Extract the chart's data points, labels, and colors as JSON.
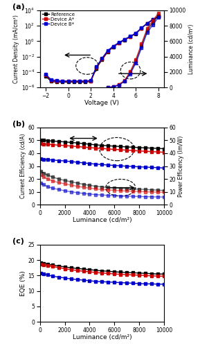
{
  "panel_a": {
    "voltage": [
      -2.0,
      -1.5,
      -1.0,
      -0.5,
      0.0,
      0.5,
      1.0,
      1.5,
      2.0,
      2.5,
      3.0,
      3.5,
      4.0,
      4.5,
      5.0,
      5.5,
      6.0,
      6.5,
      7.0,
      7.5,
      8.0
    ],
    "jd_ref": [
      3e-05,
      6e-06,
      5e-06,
      5e-06,
      5e-06,
      5e-06,
      5e-06,
      5e-06,
      6e-06,
      0.0003,
      0.004,
      0.04,
      0.18,
      0.55,
      1.4,
      3.8,
      9.5,
      48.0,
      195.0,
      590.0,
      1480.0
    ],
    "jd_A": [
      4e-05,
      8e-06,
      6e-06,
      6e-06,
      6e-06,
      6e-06,
      6e-06,
      6e-06,
      7e-06,
      0.0004,
      0.005,
      0.05,
      0.2,
      0.6,
      1.55,
      4.0,
      10.5,
      50.0,
      205.0,
      610.0,
      1580.0
    ],
    "jd_B": [
      5e-05,
      1e-05,
      8e-06,
      7e-06,
      7e-06,
      7e-06,
      7e-06,
      7e-06,
      8e-06,
      0.0005,
      0.006,
      0.06,
      0.23,
      0.68,
      1.75,
      4.3,
      11.5,
      53.0,
      215.0,
      630.0,
      1650.0
    ],
    "lum_ref": [
      0,
      0,
      0,
      0,
      0,
      0,
      0,
      0,
      0,
      0,
      0,
      10,
      80,
      350,
      850,
      1900,
      3400,
      5400,
      7400,
      8400,
      9400
    ],
    "lum_A": [
      0,
      0,
      0,
      0,
      0,
      0,
      0,
      0,
      0,
      0,
      0,
      15,
      100,
      380,
      920,
      2050,
      3650,
      5650,
      7650,
      8650,
      9650
    ],
    "lum_B": [
      0,
      0,
      0,
      0,
      0,
      0,
      0,
      0,
      0,
      0,
      0,
      8,
      65,
      310,
      780,
      1750,
      3150,
      5100,
      7100,
      8100,
      9100
    ],
    "xlim": [
      -2.5,
      8.5
    ],
    "ylim_j": [
      1e-06,
      10000.0
    ],
    "ylim_l": [
      0,
      10000
    ],
    "xlabel": "Voltage (V)",
    "ylabel_left": "Current Density (mA/cm²)",
    "ylabel_right": "Luminance (cd/m²)",
    "xticks": [
      -2,
      0,
      2,
      4,
      6,
      8
    ],
    "yticks_l": [
      0,
      2000,
      4000,
      6000,
      8000,
      10000
    ]
  },
  "panel_b": {
    "luminance": [
      50,
      300,
      600,
      1000,
      1500,
      2000,
      2500,
      3000,
      3500,
      4000,
      4500,
      5000,
      5500,
      6000,
      6500,
      7000,
      7500,
      8000,
      8500,
      9000,
      9500,
      10000
    ],
    "ce_ref": [
      50.2,
      50.0,
      49.8,
      49.5,
      49.2,
      48.8,
      48.4,
      48.0,
      47.5,
      47.0,
      46.5,
      46.2,
      45.8,
      45.5,
      45.2,
      44.9,
      44.7,
      44.4,
      44.2,
      44.0,
      43.8,
      43.5
    ],
    "ce_A": [
      47.5,
      47.2,
      47.0,
      46.7,
      46.3,
      46.0,
      45.6,
      45.2,
      44.8,
      44.4,
      44.0,
      43.7,
      43.3,
      43.0,
      42.7,
      42.4,
      42.1,
      41.8,
      41.5,
      41.3,
      41.0,
      40.8
    ],
    "ce_B": [
      35.5,
      35.2,
      35.0,
      34.7,
      34.3,
      34.0,
      33.5,
      33.0,
      32.5,
      32.0,
      31.5,
      31.2,
      30.8,
      30.5,
      30.2,
      29.9,
      29.7,
      29.4,
      29.2,
      29.0,
      28.8,
      28.5
    ],
    "pe_ref": [
      26.0,
      24.5,
      23.0,
      21.5,
      20.0,
      18.8,
      17.8,
      16.8,
      15.8,
      15.0,
      14.3,
      13.8,
      13.3,
      13.0,
      12.7,
      12.4,
      12.2,
      12.0,
      11.8,
      11.5,
      11.3,
      11.0
    ],
    "pe_A": [
      23.0,
      21.5,
      20.0,
      18.5,
      17.2,
      16.2,
      15.2,
      14.3,
      13.5,
      12.8,
      12.2,
      11.8,
      11.4,
      11.1,
      10.8,
      10.6,
      10.4,
      10.2,
      10.0,
      9.8,
      9.7,
      9.6
    ],
    "pe_B": [
      17.0,
      15.5,
      14.0,
      12.8,
      11.8,
      10.8,
      10.0,
      9.3,
      8.7,
      8.2,
      7.8,
      7.5,
      7.2,
      7.0,
      6.8,
      6.6,
      6.5,
      6.3,
      6.2,
      6.1,
      6.0,
      5.9
    ],
    "xlim": [
      0,
      10000
    ],
    "ylim": [
      0,
      60
    ],
    "xlabel": "Luminance (cd/m²)",
    "ylabel_left": "Current Efficiency (cd/A)",
    "ylabel_right": "Power Efficency (lm/W)",
    "yticks": [
      0,
      10,
      20,
      30,
      40,
      50,
      60
    ],
    "xticks": [
      0,
      2000,
      4000,
      6000,
      8000,
      10000
    ]
  },
  "panel_c": {
    "luminance": [
      50,
      300,
      600,
      1000,
      1500,
      2000,
      2500,
      3000,
      3500,
      4000,
      4500,
      5000,
      5500,
      6000,
      6500,
      7000,
      7500,
      8000,
      8500,
      9000,
      9500,
      10000
    ],
    "eqe_ref": [
      19.2,
      19.0,
      18.7,
      18.4,
      18.1,
      17.8,
      17.5,
      17.3,
      17.1,
      16.9,
      16.7,
      16.5,
      16.4,
      16.2,
      16.1,
      16.0,
      15.9,
      15.8,
      15.7,
      15.6,
      15.5,
      15.5
    ],
    "eqe_A": [
      18.7,
      18.5,
      18.2,
      17.9,
      17.6,
      17.2,
      16.9,
      16.6,
      16.4,
      16.2,
      16.0,
      15.8,
      15.7,
      15.5,
      15.4,
      15.3,
      15.2,
      15.1,
      15.0,
      14.9,
      14.8,
      14.8
    ],
    "eqe_B": [
      15.7,
      15.5,
      15.2,
      14.8,
      14.5,
      14.2,
      13.9,
      13.7,
      13.5,
      13.3,
      13.1,
      13.0,
      12.9,
      12.8,
      12.7,
      12.6,
      12.5,
      12.4,
      12.3,
      12.3,
      12.2,
      12.2
    ],
    "xlim": [
      0,
      10000
    ],
    "ylim": [
      0,
      25
    ],
    "xlabel": "Luminance (cd/m²)",
    "ylabel": "EQE (%)",
    "yticks": [
      0,
      5,
      10,
      15,
      20,
      25
    ],
    "xticks": [
      0,
      2000,
      4000,
      6000,
      8000,
      10000
    ]
  },
  "colors": {
    "ref": "#000000",
    "A": "#cc0000",
    "B": "#0000cc"
  },
  "marker": "s",
  "markersize": 3.0,
  "linewidth": 1.0
}
